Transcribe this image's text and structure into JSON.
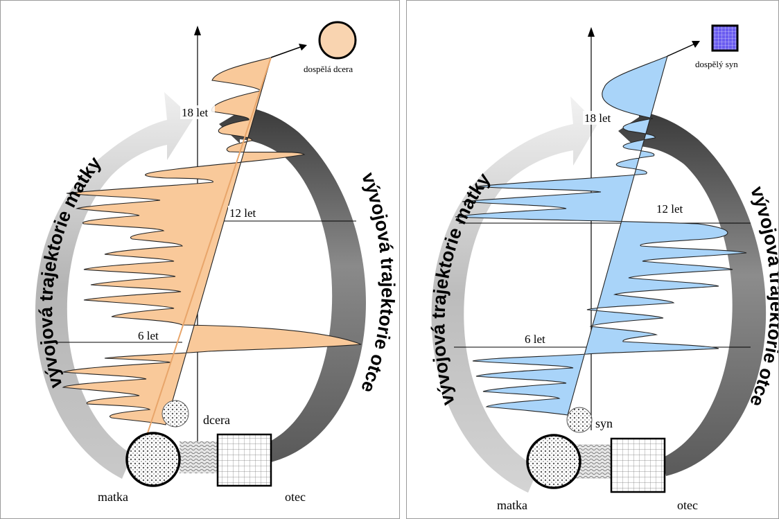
{
  "left_panel": {
    "mother_arc_label": "vývojová trajektorie matky",
    "father_arc_label": "vývojová trajektorie otce",
    "age_18": "18 let",
    "age_12": "12 let",
    "age_6": "6 let",
    "child_label": "dcera",
    "adult_label": "dospělá dcera",
    "mother_label": "matka",
    "father_label": "otec",
    "fill_color": "#f9c99a"
  },
  "right_panel": {
    "mother_arc_label": "vývojová trajektorie matky",
    "father_arc_label": "vývojová trajektorie otce",
    "age_18": "18 let",
    "age_12": "12 let",
    "age_6": "6 let",
    "child_label": "syn",
    "adult_label": "dospělý syn",
    "mother_label": "matka",
    "father_label": "otec",
    "fill_color": "#a9d4f9"
  }
}
